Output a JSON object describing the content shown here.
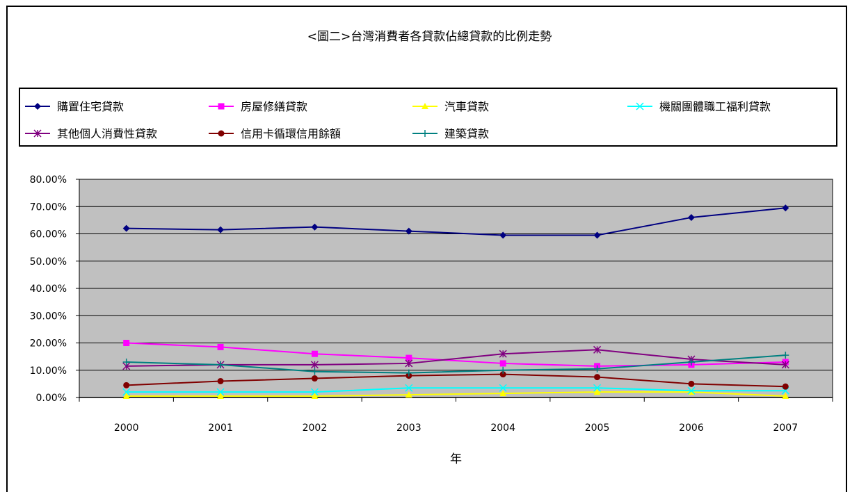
{
  "chart_data": {
    "type": "line",
    "title": "<圖二>台灣消費者各貸款佔總貸款的比例走勢",
    "xlabel": "年",
    "ylabel": "",
    "categories": [
      "2000",
      "2001",
      "2002",
      "2003",
      "2004",
      "2005",
      "2006",
      "2007"
    ],
    "ylim": [
      0,
      80
    ],
    "y_ticks": [
      "0.00%",
      "10.00%",
      "20.00%",
      "30.00%",
      "40.00%",
      "50.00%",
      "60.00%",
      "70.00%",
      "80.00%"
    ],
    "grid": true,
    "legend_position": "top",
    "plot_background": "#c0c0c0",
    "series": [
      {
        "name": "購置住宅貸款",
        "color": "#000080",
        "marker": "diamond",
        "values": [
          62,
          61.5,
          62.5,
          61,
          59.5,
          59.5,
          66,
          69.5
        ]
      },
      {
        "name": "房屋修繕貸款",
        "color": "#ff00ff",
        "marker": "square",
        "values": [
          20,
          18.5,
          16,
          14.5,
          12.5,
          11.5,
          12,
          13
        ]
      },
      {
        "name": "汽車貸款",
        "color": "#ffff00",
        "marker": "triangle",
        "values": [
          0.5,
          0.5,
          0.5,
          1,
          1.5,
          2,
          2,
          0.5
        ]
      },
      {
        "name": "機關團體職工福利貸款",
        "color": "#00ffff",
        "marker": "x",
        "values": [
          2,
          2,
          2,
          3.5,
          3.5,
          3.5,
          2.5,
          2.5
        ]
      },
      {
        "name": "其他個人消費性貸款",
        "color": "#800080",
        "marker": "star",
        "values": [
          11.5,
          12,
          12,
          12.5,
          16,
          17.5,
          14,
          12
        ]
      },
      {
        "name": "信用卡循環信用餘額",
        "color": "#800000",
        "marker": "circle",
        "values": [
          4.5,
          6,
          7,
          8,
          8.5,
          7.5,
          5,
          4
        ]
      },
      {
        "name": "建築貸款",
        "color": "#008080",
        "marker": "plus",
        "values": [
          13,
          12,
          9.5,
          9,
          10,
          10.5,
          13,
          15.5
        ]
      }
    ]
  }
}
